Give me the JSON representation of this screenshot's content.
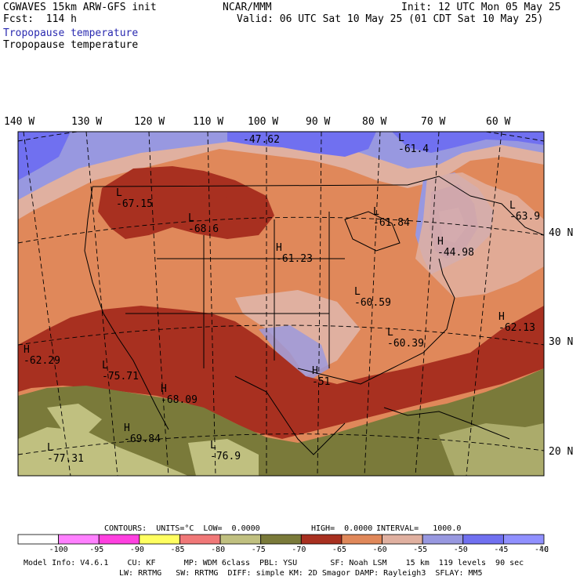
{
  "header": {
    "title_line1": "CGWAVES 15km ARW-GFS init",
    "forecast": "Fcst:  114 h",
    "center": "NCAR/MMM",
    "init": "Init: 12 UTC Mon 05 May 25",
    "valid": "Valid: 06 UTC Sat 10 May 25 (01 CDT Sat 10 May 25)",
    "field_blue": "Tropopause temperature",
    "field_black": "Tropopause temperature"
  },
  "axes": {
    "longitudes": [
      "140 W",
      "130 W",
      "120 W",
      "110 W",
      "100 W",
      "90 W",
      "80 W",
      "70 W",
      "60 W"
    ],
    "latitudes": [
      "40 N",
      "30 N",
      "20 N"
    ]
  },
  "map_labels": [
    {
      "kind": "L",
      "value": "-47.62"
    },
    {
      "kind": "L",
      "value": "-61.4"
    },
    {
      "kind": "L",
      "value": "-67.15"
    },
    {
      "kind": "L",
      "value": "-68.6"
    },
    {
      "kind": "L",
      "value": "-61.84"
    },
    {
      "kind": "L",
      "value": "-63.9"
    },
    {
      "kind": "H",
      "value": "-61.23"
    },
    {
      "kind": "H",
      "value": "-44.98"
    },
    {
      "kind": "L",
      "value": "-60.59"
    },
    {
      "kind": "H",
      "value": "-62.13"
    },
    {
      "kind": "H",
      "value": "-62.29"
    },
    {
      "kind": "L",
      "value": "-75.71"
    },
    {
      "kind": "H",
      "value": "-68.09"
    },
    {
      "kind": "L",
      "value": "-60.39"
    },
    {
      "kind": "H",
      "value": "-51"
    },
    {
      "kind": "H",
      "value": "-69.84"
    },
    {
      "kind": "L",
      "value": "-76.9"
    },
    {
      "kind": "L",
      "value": "-77.31"
    }
  ],
  "contours": {
    "units_label": "CONTOURS:  UNITS=°C  LOW=  0.0000",
    "high_label": "HIGH=  0.0000",
    "interval_label": "INTERVAL=   1000.0"
  },
  "colorbar": {
    "ticks": [
      "-100",
      "-95",
      "-90",
      "-85",
      "-80",
      "-75",
      "-70",
      "-65",
      "-60",
      "-55",
      "-50",
      "-45",
      "-40"
    ],
    "unit": "°C",
    "colors": [
      "#ffffff",
      "#ff80ff",
      "#ff40e0",
      "#ffff60",
      "#f07878",
      "#c0c080",
      "#7a7a3a",
      "#a83020",
      "#e0885a",
      "#e0b0a0",
      "#9898e0",
      "#7070f0",
      "#9090ff"
    ]
  },
  "model_info": {
    "line1": "Model Info: V4.6.1    CU: KF      MP: WDM 6class  PBL: YSU       SF: Noah LSM    15 km  119 levels  90 sec",
    "line2": "LW: RRTMG   SW: RRTMG  DIFF: simple KM: 2D Smagor DAMP: Rayleigh3  SFLAY: MM5"
  },
  "field_colors": {
    "olive_dark": "#7a7a3a",
    "olive_light": "#c0c080",
    "red_brown": "#a83020",
    "orange": "#e0885a",
    "pink_tan": "#e0b0a0",
    "lavender": "#9898e0",
    "blue": "#7070f0",
    "blue_light": "#9090ff"
  }
}
